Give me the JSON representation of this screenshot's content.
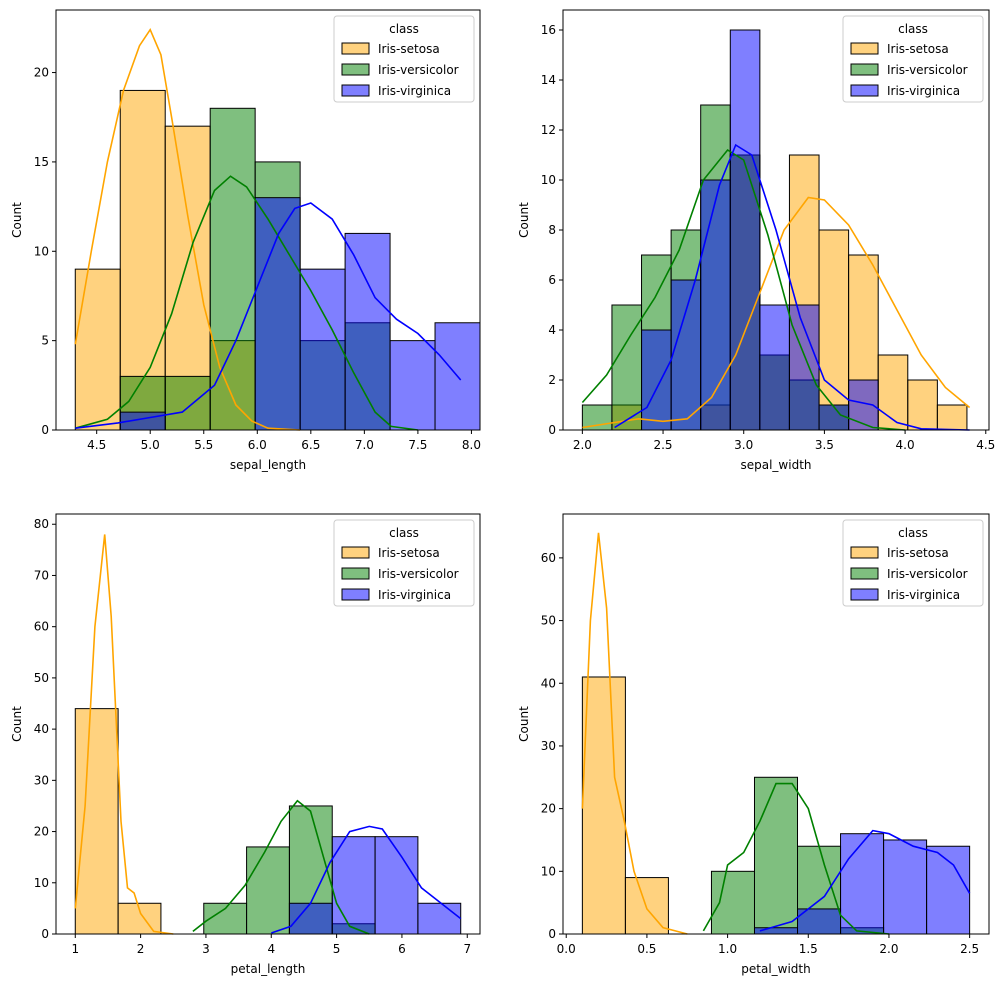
{
  "figure": {
    "background": "#ffffff"
  },
  "legend": {
    "title": "class",
    "entries": [
      {
        "name": "Iris-setosa",
        "face": "rgba(255,165,0,0.5)",
        "line": "#ffa500"
      },
      {
        "name": "Iris-versicolor",
        "face": "rgba(0,128,0,0.5)",
        "line": "#008000"
      },
      {
        "name": "Iris-virginica",
        "face": "rgba(0,0,255,0.5)",
        "line": "#0000ff"
      }
    ]
  },
  "chart_data": [
    {
      "type": "histogram",
      "xlabel": "sepal_length",
      "ylabel": "Count",
      "xlim": [
        4.12,
        8.08
      ],
      "ylim": [
        0,
        23.5
      ],
      "xticks": [
        "4.5",
        "5.0",
        "5.5",
        "6.0",
        "6.5",
        "7.0",
        "7.5",
        "8.0"
      ],
      "yticks": [
        "0",
        "5",
        "10",
        "15",
        "20"
      ],
      "bin_edges": [
        4.3,
        4.72,
        5.14,
        5.56,
        5.98,
        6.4,
        6.82,
        7.24,
        7.66,
        8.08
      ],
      "series": [
        {
          "name": "Iris-setosa",
          "counts": [
            9,
            19,
            17,
            5,
            0,
            0,
            0,
            0,
            0
          ],
          "kde": [
            [
              4.3,
              4.8
            ],
            [
              4.45,
              10
            ],
            [
              4.6,
              15
            ],
            [
              4.75,
              19
            ],
            [
              4.9,
              21.5
            ],
            [
              5.0,
              22.4
            ],
            [
              5.1,
              21
            ],
            [
              5.2,
              17.5
            ],
            [
              5.35,
              12
            ],
            [
              5.5,
              7
            ],
            [
              5.65,
              3.5
            ],
            [
              5.8,
              1.4
            ],
            [
              5.95,
              0.5
            ],
            [
              6.1,
              0.1
            ],
            [
              6.4,
              0
            ]
          ]
        },
        {
          "name": "Iris-versicolor",
          "counts": [
            0,
            3,
            3,
            18,
            15,
            5,
            6,
            0,
            0
          ],
          "kde": [
            [
              4.3,
              0.1
            ],
            [
              4.6,
              0.6
            ],
            [
              4.8,
              1.6
            ],
            [
              5.0,
              3.5
            ],
            [
              5.2,
              6.5
            ],
            [
              5.4,
              10.5
            ],
            [
              5.6,
              13.4
            ],
            [
              5.75,
              14.2
            ],
            [
              5.9,
              13.6
            ],
            [
              6.1,
              11.8
            ],
            [
              6.3,
              9.8
            ],
            [
              6.5,
              7.8
            ],
            [
              6.7,
              5.6
            ],
            [
              6.9,
              3.2
            ],
            [
              7.1,
              1.0
            ],
            [
              7.25,
              0.2
            ],
            [
              7.5,
              0
            ]
          ]
        },
        {
          "name": "Iris-virginica",
          "counts": [
            0,
            1,
            0,
            0,
            13,
            9,
            11,
            5,
            6
          ],
          "kde": [
            [
              4.3,
              0.1
            ],
            [
              4.7,
              0.4
            ],
            [
              5.0,
              0.7
            ],
            [
              5.3,
              1.0
            ],
            [
              5.6,
              2.5
            ],
            [
              5.8,
              5.0
            ],
            [
              6.0,
              8.0
            ],
            [
              6.2,
              11.0
            ],
            [
              6.35,
              12.4
            ],
            [
              6.5,
              12.7
            ],
            [
              6.7,
              11.8
            ],
            [
              6.9,
              9.8
            ],
            [
              7.1,
              7.4
            ],
            [
              7.3,
              6.2
            ],
            [
              7.5,
              5.4
            ],
            [
              7.7,
              4.2
            ],
            [
              7.9,
              2.8
            ]
          ]
        }
      ]
    },
    {
      "type": "histogram",
      "xlabel": "sepal_width",
      "ylabel": "Count",
      "xlim": [
        1.88,
        4.52
      ],
      "ylim": [
        0,
        16.8
      ],
      "xticks": [
        "2.0",
        "2.5",
        "3.0",
        "3.5",
        "4.0",
        "4.5"
      ],
      "yticks": [
        "0",
        "2",
        "4",
        "6",
        "8",
        "10",
        "12",
        "14",
        "16"
      ],
      "bin_edges": [
        2.0,
        2.1833,
        2.3667,
        2.55,
        2.7333,
        2.9167,
        3.1,
        3.2833,
        3.4667,
        3.65,
        3.8333,
        4.0167,
        4.2,
        4.3833
      ],
      "series": [
        {
          "name": "Iris-setosa",
          "counts": [
            0,
            1,
            0,
            0,
            1,
            11,
            3,
            11,
            8,
            7,
            3,
            2,
            1
          ],
          "kde": [
            [
              2.0,
              0.1
            ],
            [
              2.2,
              0.3
            ],
            [
              2.35,
              0.45
            ],
            [
              2.5,
              0.35
            ],
            [
              2.65,
              0.45
            ],
            [
              2.8,
              1.3
            ],
            [
              2.95,
              3.0
            ],
            [
              3.1,
              5.5
            ],
            [
              3.25,
              8.0
            ],
            [
              3.4,
              9.3
            ],
            [
              3.5,
              9.2
            ],
            [
              3.65,
              8.2
            ],
            [
              3.8,
              6.6
            ],
            [
              3.95,
              4.8
            ],
            [
              4.1,
              3.0
            ],
            [
              4.25,
              1.7
            ],
            [
              4.4,
              0.9
            ]
          ]
        },
        {
          "name": "Iris-versicolor",
          "counts": [
            1,
            5,
            7,
            8,
            13,
            11,
            3,
            2,
            1,
            0,
            0,
            0,
            0
          ],
          "kde": [
            [
              2.0,
              1.1
            ],
            [
              2.15,
              2.2
            ],
            [
              2.3,
              3.8
            ],
            [
              2.45,
              5.3
            ],
            [
              2.6,
              7.2
            ],
            [
              2.75,
              10.0
            ],
            [
              2.9,
              11.2
            ],
            [
              3.0,
              10.8
            ],
            [
              3.15,
              7.8
            ],
            [
              3.3,
              4.2
            ],
            [
              3.45,
              1.8
            ],
            [
              3.6,
              0.6
            ],
            [
              3.8,
              0.1
            ],
            [
              4.0,
              0
            ]
          ]
        },
        {
          "name": "Iris-virginica",
          "counts": [
            0,
            0,
            4,
            6,
            10,
            16,
            5,
            5,
            1,
            2,
            0,
            0,
            0
          ],
          "kde": [
            [
              2.2,
              0.1
            ],
            [
              2.4,
              0.9
            ],
            [
              2.55,
              2.8
            ],
            [
              2.7,
              6.0
            ],
            [
              2.85,
              9.8
            ],
            [
              2.95,
              11.4
            ],
            [
              3.05,
              11.0
            ],
            [
              3.2,
              8.0
            ],
            [
              3.35,
              4.5
            ],
            [
              3.5,
              2.0
            ],
            [
              3.65,
              1.2
            ],
            [
              3.8,
              1.0
            ],
            [
              3.95,
              0.3
            ],
            [
              4.1,
              0.05
            ],
            [
              4.4,
              0
            ]
          ]
        }
      ]
    },
    {
      "type": "histogram",
      "xlabel": "petal_length",
      "ylabel": "Count",
      "xlim": [
        0.705,
        7.195
      ],
      "ylim": [
        0,
        82
      ],
      "xticks": [
        "1",
        "2",
        "3",
        "4",
        "5",
        "6",
        "7"
      ],
      "yticks": [
        "0",
        "10",
        "20",
        "30",
        "40",
        "50",
        "60",
        "70",
        "80"
      ],
      "bin_edges": [
        1.0,
        1.6556,
        2.3111,
        2.9667,
        3.6222,
        4.2778,
        4.9333,
        5.5889,
        6.2444,
        6.9
      ],
      "series": [
        {
          "name": "Iris-setosa",
          "counts": [
            44,
            6,
            0,
            0,
            0,
            0,
            0,
            0,
            0
          ],
          "kde": [
            [
              1.0,
              5
            ],
            [
              1.15,
              25
            ],
            [
              1.3,
              60
            ],
            [
              1.45,
              78
            ],
            [
              1.55,
              62
            ],
            [
              1.7,
              22
            ],
            [
              1.8,
              9
            ],
            [
              1.9,
              8
            ],
            [
              2.0,
              4
            ],
            [
              2.2,
              0.5
            ],
            [
              2.5,
              0
            ]
          ]
        },
        {
          "name": "Iris-versicolor",
          "counts": [
            0,
            0,
            0,
            6,
            17,
            25,
            2,
            0,
            0
          ],
          "kde": [
            [
              2.8,
              0.5
            ],
            [
              3.0,
              2.5
            ],
            [
              3.3,
              5.0
            ],
            [
              3.6,
              9.5
            ],
            [
              3.9,
              16
            ],
            [
              4.15,
              22
            ],
            [
              4.4,
              26
            ],
            [
              4.6,
              24
            ],
            [
              4.8,
              15
            ],
            [
              5.0,
              6
            ],
            [
              5.2,
              1.5
            ],
            [
              5.5,
              0
            ]
          ]
        },
        {
          "name": "Iris-virginica",
          "counts": [
            0,
            0,
            0,
            0,
            0,
            6,
            19,
            19,
            6
          ],
          "kde": [
            [
              4.0,
              0.2
            ],
            [
              4.3,
              1.5
            ],
            [
              4.6,
              6
            ],
            [
              4.9,
              14
            ],
            [
              5.2,
              20
            ],
            [
              5.5,
              21
            ],
            [
              5.7,
              20.5
            ],
            [
              6.0,
              15
            ],
            [
              6.3,
              9
            ],
            [
              6.6,
              6
            ],
            [
              6.9,
              3
            ]
          ]
        }
      ]
    },
    {
      "type": "histogram",
      "xlabel": "petal_width",
      "ylabel": "Count",
      "xlim": [
        -0.02,
        2.62
      ],
      "ylim": [
        0,
        67
      ],
      "xticks": [
        "0.0",
        "0.5",
        "1.0",
        "1.5",
        "2.0",
        "2.5"
      ],
      "yticks": [
        "0",
        "10",
        "20",
        "30",
        "40",
        "50",
        "60"
      ],
      "bin_edges": [
        0.1,
        0.3667,
        0.6333,
        0.9,
        1.1667,
        1.4333,
        1.7,
        1.9667,
        2.2333,
        2.5
      ],
      "series": [
        {
          "name": "Iris-setosa",
          "counts": [
            41,
            9,
            0,
            0,
            0,
            0,
            0,
            0,
            0
          ],
          "kde": [
            [
              0.1,
              20
            ],
            [
              0.15,
              50
            ],
            [
              0.2,
              64
            ],
            [
              0.25,
              52
            ],
            [
              0.3,
              25
            ],
            [
              0.36,
              18
            ],
            [
              0.42,
              10
            ],
            [
              0.5,
              4
            ],
            [
              0.6,
              1
            ],
            [
              0.75,
              0
            ]
          ]
        },
        {
          "name": "Iris-versicolor",
          "counts": [
            0,
            0,
            0,
            10,
            25,
            14,
            1,
            0,
            0
          ],
          "kde": [
            [
              0.85,
              0.5
            ],
            [
              0.95,
              5
            ],
            [
              1.0,
              11
            ],
            [
              1.1,
              13
            ],
            [
              1.2,
              18
            ],
            [
              1.3,
              24
            ],
            [
              1.4,
              24
            ],
            [
              1.5,
              20
            ],
            [
              1.6,
              11
            ],
            [
              1.7,
              3
            ],
            [
              1.8,
              0.5
            ],
            [
              2.0,
              0
            ]
          ]
        },
        {
          "name": "Iris-virginica",
          "counts": [
            0,
            0,
            0,
            0,
            1,
            4,
            16,
            15,
            14
          ],
          "kde": [
            [
              1.2,
              0.5
            ],
            [
              1.4,
              2
            ],
            [
              1.6,
              6
            ],
            [
              1.75,
              12
            ],
            [
              1.9,
              16.5
            ],
            [
              2.0,
              16
            ],
            [
              2.15,
              14
            ],
            [
              2.3,
              13
            ],
            [
              2.4,
              11
            ],
            [
              2.5,
              6.5
            ]
          ]
        }
      ]
    }
  ]
}
